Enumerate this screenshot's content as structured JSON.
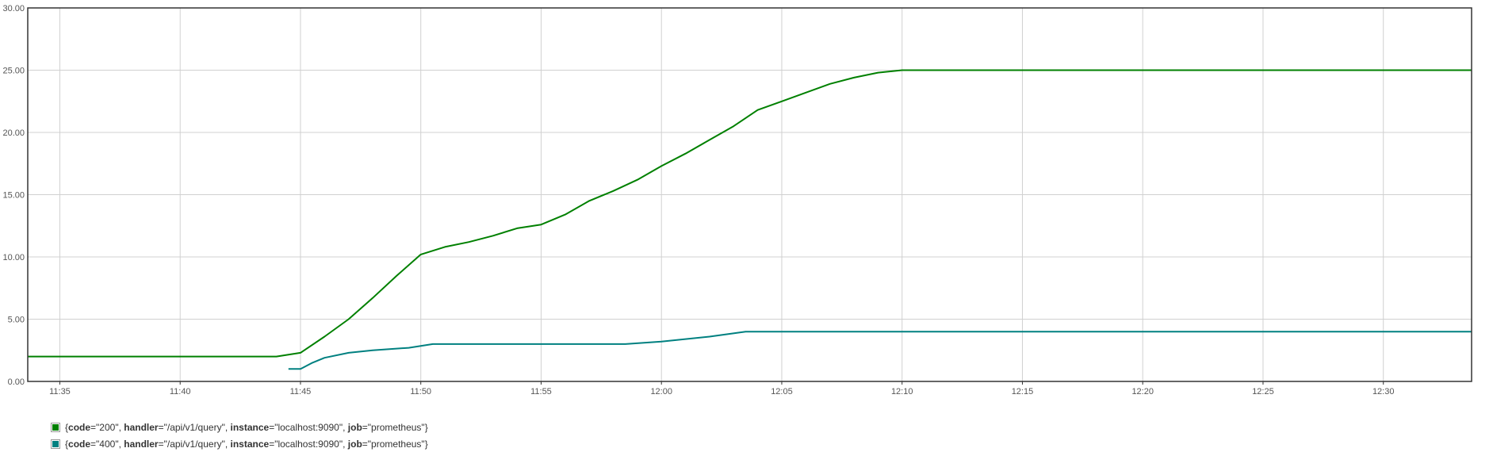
{
  "chart_data": {
    "type": "line",
    "ylim": [
      0,
      30
    ],
    "y_ticks": [
      "0.00",
      "5.00",
      "10.00",
      "15.00",
      "20.00",
      "25.00",
      "30.00"
    ],
    "y_tick_values": [
      0,
      5,
      10,
      15,
      20,
      25,
      30
    ],
    "x_range": [
      "11:33:40",
      "12:33:40"
    ],
    "x_ticks": [
      "11:35",
      "11:40",
      "11:45",
      "11:50",
      "11:55",
      "12:00",
      "12:05",
      "12:10",
      "12:15",
      "12:20",
      "12:25",
      "12:30"
    ],
    "grid": true,
    "legend_position": "bottom-left",
    "series": [
      {
        "color": "#008000",
        "legend": {
          "open": "{",
          "labels": [
            {
              "key": "code",
              "value": "\"200\""
            },
            {
              "key": "handler",
              "value": "\"/api/v1/query\""
            },
            {
              "key": "instance",
              "value": "\"localhost:9090\""
            },
            {
              "key": "job",
              "value": "\"prometheus\""
            }
          ],
          "close": "}"
        },
        "points": [
          [
            "11:33:40",
            2
          ],
          [
            "11:44:00",
            2
          ],
          [
            "11:45:00",
            2.3
          ],
          [
            "11:46:00",
            3.6
          ],
          [
            "11:47:00",
            5.0
          ],
          [
            "11:48:00",
            6.7
          ],
          [
            "11:49:00",
            8.5
          ],
          [
            "11:50:00",
            10.2
          ],
          [
            "11:51:00",
            10.8
          ],
          [
            "11:52:00",
            11.2
          ],
          [
            "11:53:00",
            11.7
          ],
          [
            "11:54:00",
            12.3
          ],
          [
            "11:55:00",
            12.6
          ],
          [
            "11:56:00",
            13.4
          ],
          [
            "11:57:00",
            14.5
          ],
          [
            "11:58:00",
            15.3
          ],
          [
            "11:59:00",
            16.2
          ],
          [
            "12:00:00",
            17.3
          ],
          [
            "12:01:00",
            18.3
          ],
          [
            "12:02:00",
            19.4
          ],
          [
            "12:03:00",
            20.5
          ],
          [
            "12:04:00",
            21.8
          ],
          [
            "12:05:00",
            22.5
          ],
          [
            "12:06:00",
            23.2
          ],
          [
            "12:07:00",
            23.9
          ],
          [
            "12:08:00",
            24.4
          ],
          [
            "12:09:00",
            24.8
          ],
          [
            "12:10:00",
            25
          ],
          [
            "12:33:40",
            25
          ]
        ]
      },
      {
        "color": "#008080",
        "legend": {
          "open": "{",
          "labels": [
            {
              "key": "code",
              "value": "\"400\""
            },
            {
              "key": "handler",
              "value": "\"/api/v1/query\""
            },
            {
              "key": "instance",
              "value": "\"localhost:9090\""
            },
            {
              "key": "job",
              "value": "\"prometheus\""
            }
          ],
          "close": "}"
        },
        "points": [
          [
            "11:44:30",
            1
          ],
          [
            "11:45:00",
            1
          ],
          [
            "11:45:30",
            1.5
          ],
          [
            "11:46:00",
            1.9
          ],
          [
            "11:47:00",
            2.3
          ],
          [
            "11:48:00",
            2.5
          ],
          [
            "11:49:30",
            2.7
          ],
          [
            "11:50:30",
            3
          ],
          [
            "11:58:30",
            3
          ],
          [
            "12:00:00",
            3.2
          ],
          [
            "12:02:00",
            3.6
          ],
          [
            "12:03:30",
            4
          ],
          [
            "12:33:40",
            4
          ]
        ]
      }
    ]
  }
}
